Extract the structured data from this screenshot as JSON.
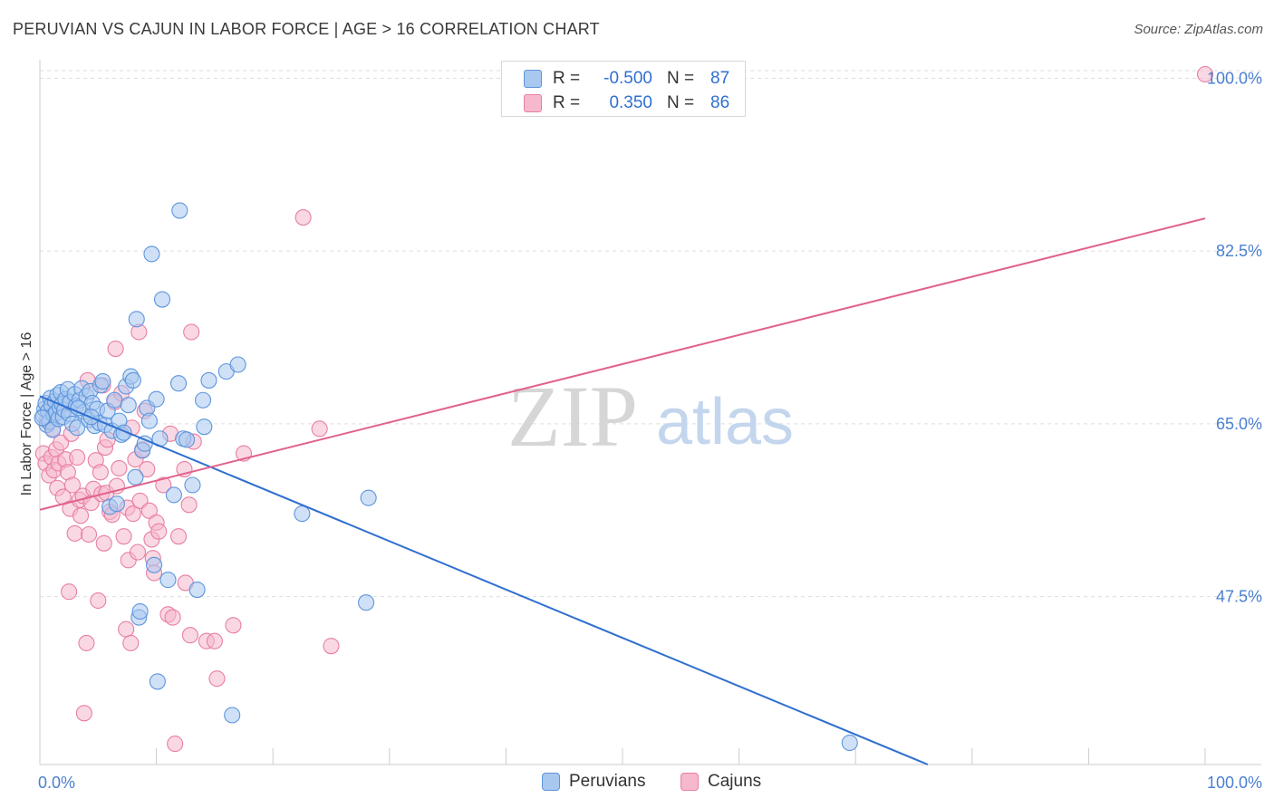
{
  "title": "PERUVIAN VS CAJUN IN LABOR FORCE | AGE > 16 CORRELATION CHART",
  "source": "Source: ZipAtlas.com",
  "watermark": {
    "zip": "ZIP",
    "atlas": "atlas"
  },
  "colors": {
    "peruvian_fill": "#a9c8f0",
    "peruvian_stroke": "#5d95dc",
    "peruvian_line": "#2f6fcf",
    "cajun_fill": "#f6b8cc",
    "cajun_stroke": "#e87fa2",
    "cajun_line": "#e0628c",
    "axis_text": "#4a7fd0",
    "grid": "#dedede"
  },
  "legend": {
    "rows": [
      {
        "swatch": "peruvian",
        "r_label": "R =",
        "r_value": "-0.500",
        "n_label": "N =",
        "n_value": "87"
      },
      {
        "swatch": "cajun",
        "r_label": "R =",
        "r_value": "0.350",
        "n_label": "N =",
        "n_value": "86"
      }
    ]
  },
  "bottom_legend": {
    "peruvians": "Peruvians",
    "cajuns": "Cajuns"
  },
  "chart_data": {
    "type": "scatter",
    "title": "PERUVIAN VS CAJUN IN LABOR FORCE | AGE > 16 CORRELATION CHART",
    "xlabel": "",
    "ylabel": "In Labor Force | Age > 16",
    "xlim": [
      0,
      100
    ],
    "ylim": [
      30.5,
      101.5
    ],
    "x_tick_labels": [
      "0.0%",
      "100.0%"
    ],
    "y_ticks": [
      47.5,
      65.0,
      82.5,
      100.0
    ],
    "y_tick_labels": [
      "47.5%",
      "65.0%",
      "82.5%",
      "100.0%"
    ],
    "grid": true,
    "series": [
      {
        "name": "Peruvians",
        "r": -0.5,
        "n": 87,
        "trend": {
          "x": [
            0,
            76.2
          ],
          "y": [
            67.8,
            30.5
          ]
        },
        "points": [
          [
            0.3,
            65.8
          ],
          [
            0.4,
            66.5
          ],
          [
            0.5,
            67.1
          ],
          [
            0.6,
            64.9
          ],
          [
            0.7,
            66.3
          ],
          [
            0.8,
            65.2
          ],
          [
            0.9,
            67.6
          ],
          [
            1.0,
            66.9
          ],
          [
            1.1,
            64.4
          ],
          [
            1.2,
            65.9
          ],
          [
            1.3,
            67.3
          ],
          [
            1.4,
            66.1
          ],
          [
            1.5,
            67.9
          ],
          [
            1.6,
            65.5
          ],
          [
            1.7,
            66.7
          ],
          [
            1.8,
            68.2
          ],
          [
            1.9,
            67.0
          ],
          [
            2.0,
            65.7
          ],
          [
            2.1,
            66.4
          ],
          [
            2.2,
            67.5
          ],
          [
            2.4,
            68.5
          ],
          [
            2.5,
            66.0
          ],
          [
            2.6,
            67.2
          ],
          [
            2.8,
            65.0
          ],
          [
            3.0,
            68.0
          ],
          [
            3.1,
            66.8
          ],
          [
            3.2,
            64.6
          ],
          [
            3.4,
            67.4
          ],
          [
            3.6,
            68.6
          ],
          [
            3.8,
            66.2
          ],
          [
            4.0,
            67.8
          ],
          [
            4.2,
            65.4
          ],
          [
            4.3,
            68.3
          ],
          [
            4.5,
            67.1
          ],
          [
            4.7,
            64.8
          ],
          [
            4.9,
            66.5
          ],
          [
            5.1,
            65.1
          ],
          [
            5.2,
            68.9
          ],
          [
            5.4,
            69.3
          ],
          [
            5.6,
            64.9
          ],
          [
            5.8,
            66.3
          ],
          [
            6.0,
            56.6
          ],
          [
            6.2,
            64.3
          ],
          [
            6.4,
            67.4
          ],
          [
            6.6,
            56.9
          ],
          [
            6.8,
            65.3
          ],
          [
            7.0,
            63.9
          ],
          [
            7.2,
            64.1
          ],
          [
            7.4,
            68.8
          ],
          [
            7.6,
            66.9
          ],
          [
            7.8,
            69.8
          ],
          [
            8.0,
            69.4
          ],
          [
            8.2,
            59.6
          ],
          [
            8.3,
            75.6
          ],
          [
            8.5,
            45.4
          ],
          [
            8.6,
            46.0
          ],
          [
            8.8,
            62.3
          ],
          [
            9.0,
            63.0
          ],
          [
            9.2,
            66.6
          ],
          [
            9.4,
            65.3
          ],
          [
            9.6,
            82.2
          ],
          [
            9.8,
            50.7
          ],
          [
            10.0,
            67.5
          ],
          [
            10.3,
            63.5
          ],
          [
            10.5,
            77.6
          ],
          [
            11.0,
            49.2
          ],
          [
            11.5,
            57.8
          ],
          [
            11.9,
            69.1
          ],
          [
            12.0,
            86.6
          ],
          [
            12.3,
            63.5
          ],
          [
            12.6,
            63.4
          ],
          [
            13.1,
            58.8
          ],
          [
            13.5,
            48.2
          ],
          [
            14.0,
            67.4
          ],
          [
            14.1,
            64.7
          ],
          [
            14.5,
            69.4
          ],
          [
            16.0,
            70.3
          ],
          [
            16.5,
            35.5
          ],
          [
            17.0,
            71.0
          ],
          [
            22.5,
            55.9
          ],
          [
            28.2,
            57.5
          ],
          [
            28.0,
            46.9
          ],
          [
            69.5,
            32.7
          ],
          [
            10.1,
            38.9
          ],
          [
            0.2,
            65.6
          ],
          [
            3.3,
            66.6
          ],
          [
            4.4,
            65.7
          ]
        ]
      },
      {
        "name": "Cajuns",
        "r": 0.35,
        "n": 86,
        "trend": {
          "x": [
            0,
            100
          ],
          "y": [
            56.3,
            85.8
          ]
        },
        "points": [
          [
            0.3,
            62.0
          ],
          [
            0.5,
            61.0
          ],
          [
            0.6,
            65.3
          ],
          [
            0.8,
            59.8
          ],
          [
            1.0,
            61.6
          ],
          [
            1.1,
            64.5
          ],
          [
            1.2,
            60.3
          ],
          [
            1.4,
            62.4
          ],
          [
            1.5,
            58.5
          ],
          [
            1.6,
            61.0
          ],
          [
            1.8,
            63.1
          ],
          [
            2.0,
            57.6
          ],
          [
            2.2,
            61.4
          ],
          [
            2.4,
            60.1
          ],
          [
            2.6,
            56.4
          ],
          [
            2.7,
            64.0
          ],
          [
            2.8,
            58.8
          ],
          [
            3.0,
            53.9
          ],
          [
            3.2,
            61.6
          ],
          [
            3.4,
            57.3
          ],
          [
            3.5,
            55.7
          ],
          [
            3.7,
            57.7
          ],
          [
            3.8,
            35.7
          ],
          [
            4.0,
            42.8
          ],
          [
            4.1,
            69.4
          ],
          [
            4.2,
            53.8
          ],
          [
            4.4,
            57.0
          ],
          [
            4.6,
            58.4
          ],
          [
            4.8,
            61.3
          ],
          [
            5.0,
            47.1
          ],
          [
            5.2,
            60.1
          ],
          [
            5.3,
            57.9
          ],
          [
            5.4,
            68.9
          ],
          [
            5.5,
            52.9
          ],
          [
            5.6,
            62.6
          ],
          [
            5.7,
            58.0
          ],
          [
            5.8,
            63.4
          ],
          [
            6.0,
            56.1
          ],
          [
            6.2,
            55.8
          ],
          [
            6.4,
            67.2
          ],
          [
            6.5,
            72.6
          ],
          [
            6.6,
            58.7
          ],
          [
            6.8,
            60.5
          ],
          [
            7.0,
            68.1
          ],
          [
            7.2,
            53.6
          ],
          [
            7.4,
            44.2
          ],
          [
            7.5,
            56.5
          ],
          [
            7.6,
            51.2
          ],
          [
            7.8,
            42.8
          ],
          [
            8.0,
            55.9
          ],
          [
            8.2,
            61.4
          ],
          [
            8.4,
            52.0
          ],
          [
            8.5,
            74.3
          ],
          [
            8.6,
            57.2
          ],
          [
            8.8,
            62.4
          ],
          [
            9.0,
            66.3
          ],
          [
            9.2,
            60.4
          ],
          [
            9.4,
            56.2
          ],
          [
            9.6,
            53.3
          ],
          [
            9.7,
            51.4
          ],
          [
            9.8,
            49.9
          ],
          [
            10.0,
            55.0
          ],
          [
            10.2,
            54.1
          ],
          [
            10.6,
            58.8
          ],
          [
            11.0,
            45.7
          ],
          [
            11.2,
            64.0
          ],
          [
            11.4,
            45.4
          ],
          [
            11.6,
            32.6
          ],
          [
            11.9,
            53.6
          ],
          [
            12.4,
            60.4
          ],
          [
            12.5,
            48.9
          ],
          [
            12.8,
            56.8
          ],
          [
            13.0,
            74.3
          ],
          [
            13.2,
            63.2
          ],
          [
            14.3,
            43.0
          ],
          [
            15.0,
            43.0
          ],
          [
            15.2,
            39.2
          ],
          [
            16.6,
            44.6
          ],
          [
            17.5,
            62.0
          ],
          [
            22.6,
            85.9
          ],
          [
            24.0,
            64.5
          ],
          [
            25.0,
            42.5
          ],
          [
            100.0,
            102.0
          ],
          [
            2.5,
            48.0
          ],
          [
            7.9,
            64.6
          ],
          [
            12.9,
            43.6
          ]
        ]
      }
    ]
  }
}
